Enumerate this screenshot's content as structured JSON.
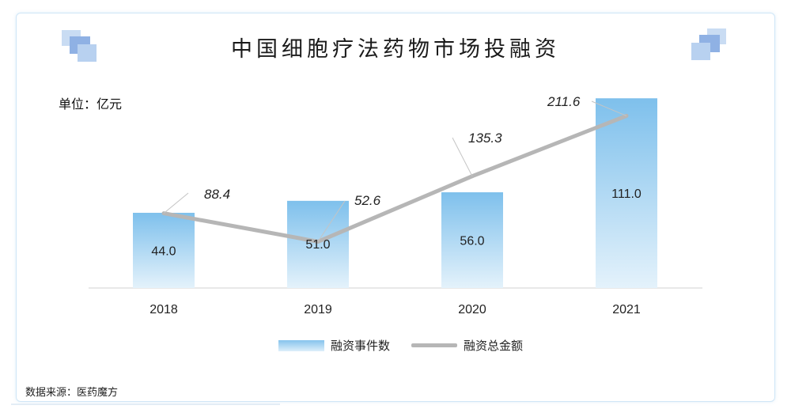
{
  "title": "中国细胞疗法药物市场投融资",
  "unit_label": "单位：亿元",
  "source": "数据来源：医药魔方",
  "colors": {
    "bar_top": "#7ec0ec",
    "bar_bottom": "#e4f2fb",
    "line": "#b6b6b6",
    "accent": "#5b8fd9"
  },
  "legend": {
    "bar_label": "融资事件数",
    "line_label": "融资总金额"
  },
  "chart_data": {
    "type": "bar",
    "categories": [
      "2018",
      "2019",
      "2020",
      "2021"
    ],
    "series": [
      {
        "name": "融资事件数",
        "type": "bar",
        "values": [
          44.0,
          51.0,
          56.0,
          111.0
        ],
        "labels": [
          "44.0",
          "51.0",
          "56.0",
          "111.0"
        ]
      },
      {
        "name": "融资总金额",
        "type": "line",
        "values": [
          88.4,
          52.6,
          135.3,
          211.6
        ],
        "labels": [
          "88.4",
          "52.6",
          "135.3",
          "211.6"
        ]
      }
    ],
    "legend_position": "bottom",
    "grid": false
  }
}
